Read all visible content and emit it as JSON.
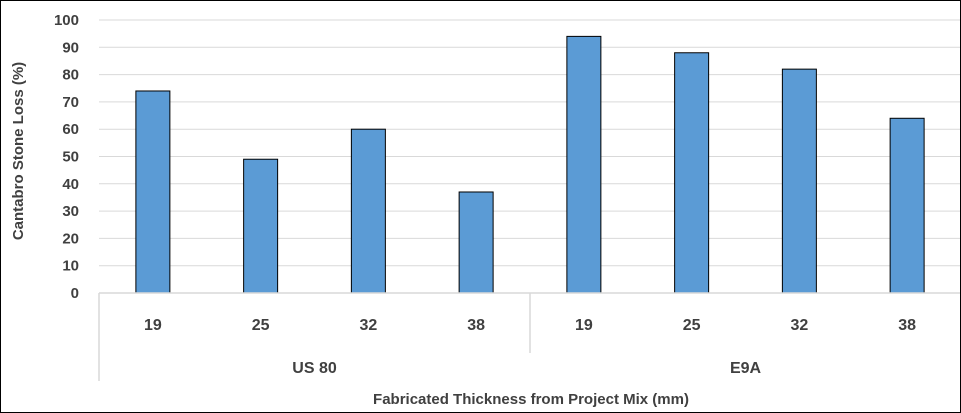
{
  "chart_data": {
    "type": "bar",
    "title": "",
    "xlabel": "Fabricated Thickness from Project Mix (mm)",
    "ylabel": "Cantabro Stone Loss (%)",
    "ylim": [
      0,
      100
    ],
    "yticks": [
      0,
      10,
      20,
      30,
      40,
      50,
      60,
      70,
      80,
      90,
      100
    ],
    "grid": true,
    "legend": "none",
    "groups": [
      {
        "label": "US 80",
        "categories": [
          "19",
          "25",
          "32",
          "38"
        ],
        "values": [
          74,
          49,
          60,
          37
        ]
      },
      {
        "label": "E9A",
        "categories": [
          "19",
          "25",
          "32",
          "38"
        ],
        "values": [
          94,
          88,
          82,
          64
        ]
      }
    ],
    "colors": {
      "bar": "#5B9BD5",
      "bar_outline": "#000000",
      "grid": "#D9D9D9",
      "text": "#404040"
    }
  }
}
